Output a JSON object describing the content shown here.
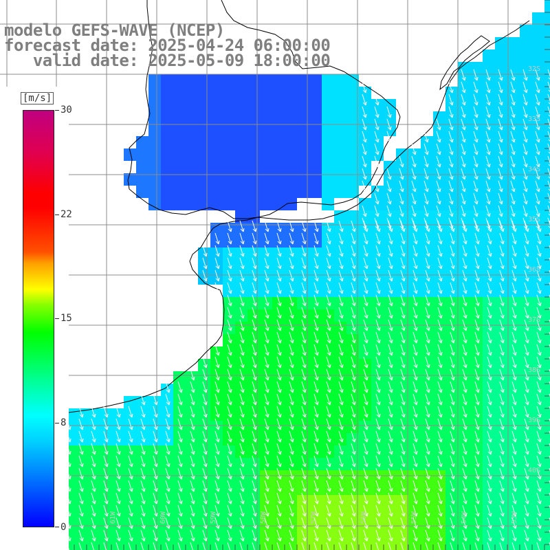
{
  "title": {
    "line1": "modelo GEFS-WAVE (NCEP)",
    "line2": "forecast date: 2025-04-24 06:00:00",
    "line3": "   valid date: 2025-05-09 18:00:00"
  },
  "colorbar": {
    "unit": "[m/s]",
    "min": 0,
    "max": 30,
    "ticks": [
      {
        "label": "30",
        "value": 30
      },
      {
        "label": "22",
        "value": 22
      },
      {
        "label": "15",
        "value": 15
      },
      {
        "label": "8",
        "value": 8
      },
      {
        "label": "0",
        "value": 0
      }
    ],
    "colors": [
      "#0000ff",
      "#00ccff",
      "#00ffff",
      "#00ff80",
      "#00ff00",
      "#ffff00",
      "#ff5000",
      "#ff0000",
      "#c00080"
    ]
  },
  "map": {
    "latitude_labels": [
      "32S",
      "33S",
      "34S",
      "35S",
      "36S",
      "37S",
      "38S",
      "39S",
      "40S"
    ],
    "longitude_labels": [
      "63W",
      "62W",
      "61W",
      "60W",
      "59W",
      "58W",
      "57W",
      "56W",
      "55W",
      "54W",
      "53W"
    ],
    "ocean_color": "#00ff90",
    "coastline_color": "#000000",
    "grid_color": "#8c8c8c",
    "arrow_color": "#ffffff",
    "wind_direction": "from NW toward SE/S"
  }
}
